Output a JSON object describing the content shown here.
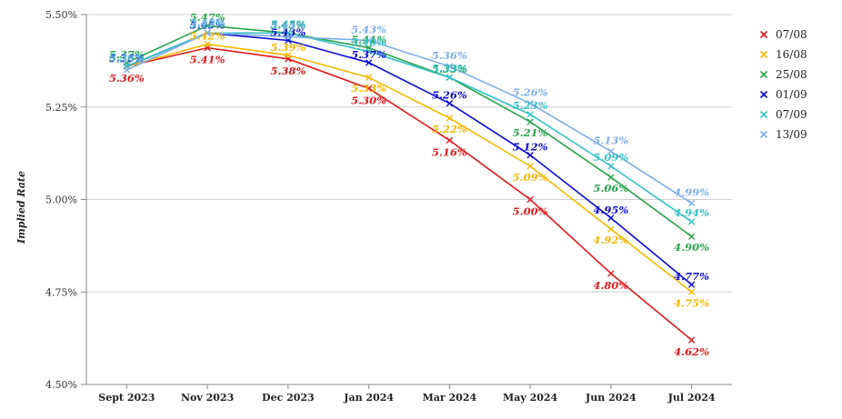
{
  "chart_data": {
    "type": "line",
    "title": "",
    "xlabel": "",
    "ylabel": "Implied Rate",
    "categories": [
      "Sept 2023",
      "Nov 2023",
      "Dec 2023",
      "Jan 2024",
      "Mar 2024",
      "May 2024",
      "Jun 2024",
      "Jul 2024"
    ],
    "ylim": [
      4.5,
      5.5
    ],
    "yticks": [
      "4.50%",
      "4.75%",
      "5.00%",
      "5.25%",
      "5.50%"
    ],
    "ytick_values": [
      4.5,
      4.75,
      5.0,
      5.25,
      5.5
    ],
    "grid": "horizontal",
    "legend_position": "right",
    "series": [
      {
        "name": "07/08",
        "color": "#e0191c",
        "values": [
          5.36,
          5.41,
          5.38,
          5.3,
          5.16,
          5.0,
          4.8,
          4.62
        ],
        "labels": [
          "5.36%",
          "5.41%",
          "5.38%",
          "5.30%",
          "5.16%",
          "5.00%",
          "4.80%",
          "4.62%"
        ]
      },
      {
        "name": "16/08",
        "color": "#f5b800",
        "values": [
          5.36,
          5.42,
          5.39,
          5.33,
          5.22,
          5.09,
          4.92,
          4.75
        ],
        "labels": [
          "5.36%",
          "5.42%",
          "5.39%",
          "5.33%",
          "5.22%",
          "5.09%",
          "4.92%",
          "4.75%"
        ]
      },
      {
        "name": "25/08",
        "color": "#2aa34a",
        "values": [
          5.37,
          5.47,
          5.45,
          5.41,
          5.33,
          5.21,
          5.06,
          4.9
        ],
        "labels": [
          "5.37%",
          "5.47%",
          "5.45%",
          "5.41%",
          "5.33%",
          "5.21%",
          "5.06%",
          "4.90%"
        ]
      },
      {
        "name": "01/09",
        "color": "#0a0ad6",
        "values": [
          5.36,
          5.45,
          5.43,
          5.37,
          5.26,
          5.12,
          4.95,
          4.77
        ],
        "labels": [
          "5.36%",
          "5.45%",
          "5.43%",
          "5.37%",
          "5.26%",
          "5.12%",
          "4.95%",
          "4.77%"
        ]
      },
      {
        "name": "07/09",
        "color": "#35c0c8",
        "values": [
          5.36,
          5.45,
          5.45,
          5.4,
          5.33,
          5.23,
          5.09,
          4.94
        ],
        "labels": [
          "5.36%",
          "5.45%",
          "5.45%",
          "5.40%",
          "5.33%",
          "5.23%",
          "5.09%",
          "4.94%"
        ]
      },
      {
        "name": "13/09",
        "color": "#7eaee6",
        "values": [
          5.35,
          5.45,
          5.44,
          5.43,
          5.36,
          5.26,
          5.13,
          4.99
        ],
        "labels": [
          "5.35%",
          "5.45%",
          "5.44%",
          "5.43%",
          "5.36%",
          "5.26%",
          "5.13%",
          "4.99%"
        ]
      }
    ]
  }
}
